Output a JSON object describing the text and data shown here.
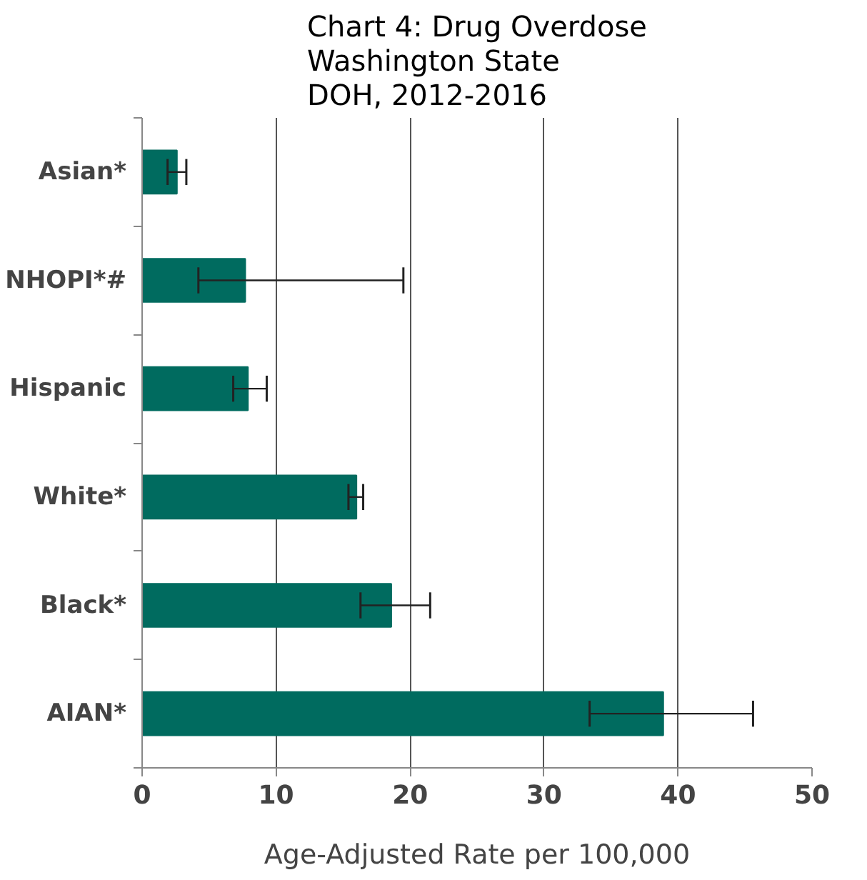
{
  "chart_data": {
    "type": "bar",
    "orientation": "horizontal",
    "title": "Chart 4: Drug Overdose\nWashington State\nDOH, 2012-2016",
    "xlabel": "Age-Adjusted Rate per 100,000",
    "categories": [
      "Asian*",
      "NHOPI*#",
      "Hispanic",
      "White*",
      "Black*",
      "AIAN*"
    ],
    "values": [
      2.6,
      7.7,
      7.9,
      16.0,
      18.6,
      38.9
    ],
    "errors": [
      [
        1.9,
        3.3
      ],
      [
        4.2,
        19.5
      ],
      [
        6.8,
        9.3
      ],
      [
        15.4,
        16.5
      ],
      [
        16.3,
        21.5
      ],
      [
        33.4,
        45.6
      ]
    ],
    "color": "#006b5f",
    "xlim": [
      0,
      50
    ],
    "xticks": [
      0,
      10,
      20,
      30,
      40,
      50
    ],
    "grid": "x"
  }
}
